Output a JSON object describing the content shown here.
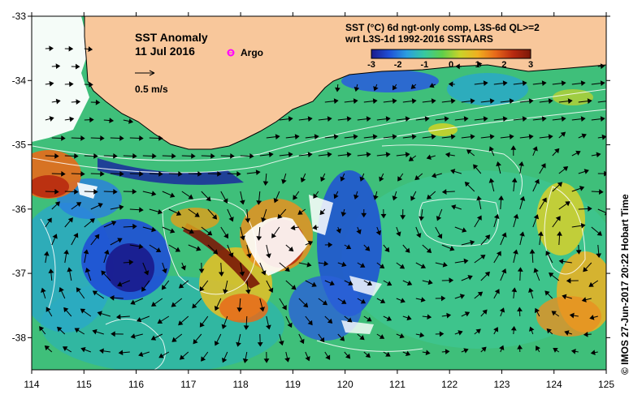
{
  "title": "SST Anomaly",
  "date": "11 Jul 2016",
  "legend": {
    "argo_label": "Argo",
    "argo_color": "#ff00ff",
    "vector_scale_label": "0.5 m/s"
  },
  "colorbar": {
    "title_line1": "SST (°C) 6d ngt-only comp, L3S-6d QL>=2",
    "title_line2": "wrt L3S-1d 1992-2016 SSTAARS",
    "ticks": [
      "-3",
      "-2",
      "-1",
      "0",
      "1",
      "2",
      "3"
    ],
    "min": -3,
    "max": 3,
    "colors": [
      "#1a1a8c",
      "#1f4fd6",
      "#2a9ee0",
      "#37c9a0",
      "#5fcf4a",
      "#c9d32a",
      "#f0b020",
      "#e86a1a",
      "#b82a10",
      "#7a1808"
    ]
  },
  "axes": {
    "x_ticks": [
      "114",
      "115",
      "116",
      "117",
      "118",
      "119",
      "120",
      "121",
      "122",
      "123",
      "124",
      "125"
    ],
    "y_ticks": [
      "-33",
      "-34",
      "-35",
      "-36",
      "-37",
      "-38"
    ],
    "lon_range": [
      114,
      125
    ],
    "lat_range": [
      -38.5,
      -33
    ]
  },
  "credit": "© IMOS 27-Jun-2017 20:22 Hobart Time",
  "colors": {
    "land": "#f8c79b",
    "ocean_base": "#3fbf7a",
    "coast_line": "#000000",
    "contour": "#ffffff",
    "no_data": "#ffffff"
  }
}
